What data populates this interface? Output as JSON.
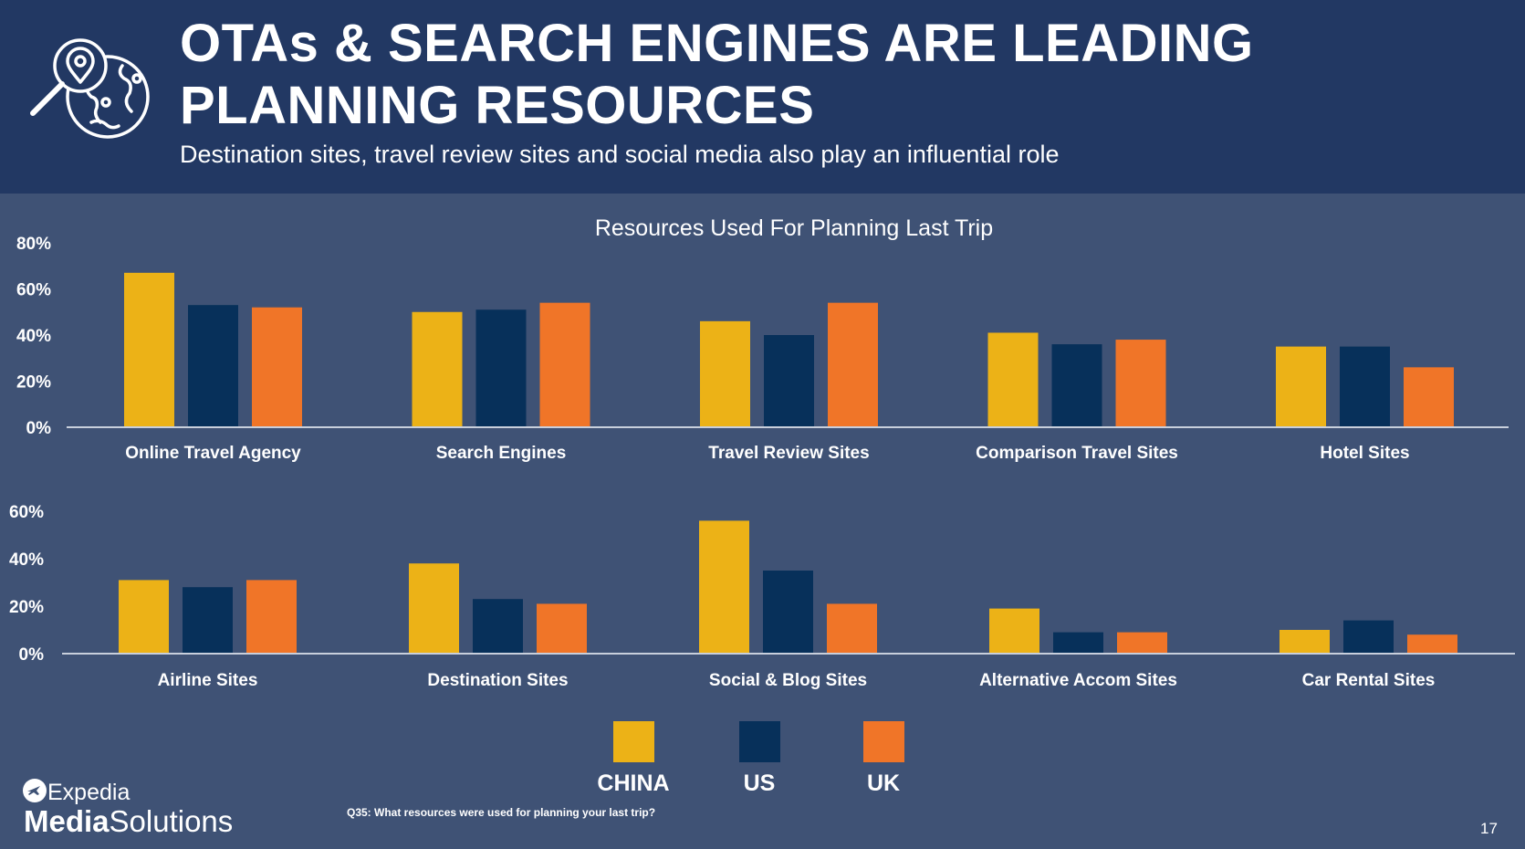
{
  "header": {
    "title_line1": "OTAs & SEARCH ENGINES ARE LEADING",
    "title_line2": "PLANNING RESOURCES",
    "subtitle": "Destination sites, travel review sites and social media also play an influential role",
    "icon": "map-pin-magnifier-globe-icon"
  },
  "colors": {
    "header_bg": "#223863",
    "page_bg": "#3f5275",
    "china": "#ecb217",
    "us": "#07305a",
    "uk": "#f07528",
    "text": "#ffffff"
  },
  "chart_data": [
    {
      "type": "bar",
      "title": "Resources Used For Planning Last Trip",
      "categories": [
        "Online Travel Agency",
        "Search Engines",
        "Travel Review Sites",
        "Comparison Travel Sites",
        "Hotel Sites"
      ],
      "series": [
        {
          "name": "CHINA",
          "values": [
            67,
            50,
            46,
            41,
            35
          ]
        },
        {
          "name": "US",
          "values": [
            53,
            51,
            40,
            36,
            35
          ]
        },
        {
          "name": "UK",
          "values": [
            52,
            54,
            54,
            38,
            26
          ]
        }
      ],
      "ylim": [
        0,
        80
      ],
      "yticks": [
        "0%",
        "20%",
        "40%",
        "60%",
        "80%"
      ],
      "xlabel": "",
      "ylabel": "",
      "grid": false
    },
    {
      "type": "bar",
      "title": "",
      "categories": [
        "Airline Sites",
        "Destination Sites",
        "Social & Blog Sites",
        "Alternative Accom Sites",
        "Car Rental Sites"
      ],
      "series": [
        {
          "name": "CHINA",
          "values": [
            31,
            38,
            56,
            19,
            10
          ]
        },
        {
          "name": "US",
          "values": [
            28,
            23,
            35,
            9,
            14
          ]
        },
        {
          "name": "UK",
          "values": [
            31,
            21,
            21,
            9,
            8
          ]
        }
      ],
      "ylim": [
        0,
        60
      ],
      "yticks": [
        "0%",
        "20%",
        "40%",
        "60%"
      ],
      "xlabel": "",
      "ylabel": "",
      "grid": false
    }
  ],
  "legend": {
    "placement": "bottom-center",
    "items": [
      {
        "label": "CHINA",
        "color": "#ecb217"
      },
      {
        "label": "US",
        "color": "#07305a"
      },
      {
        "label": "UK",
        "color": "#f07528"
      }
    ]
  },
  "footnote": "Q35: What resources were used for planning your last trip?",
  "page_number": "17",
  "brand": {
    "line1": "Expedia",
    "line2_bold": "Media",
    "line2_rest": "Solutions",
    "icon": "expedia-plane-icon"
  }
}
